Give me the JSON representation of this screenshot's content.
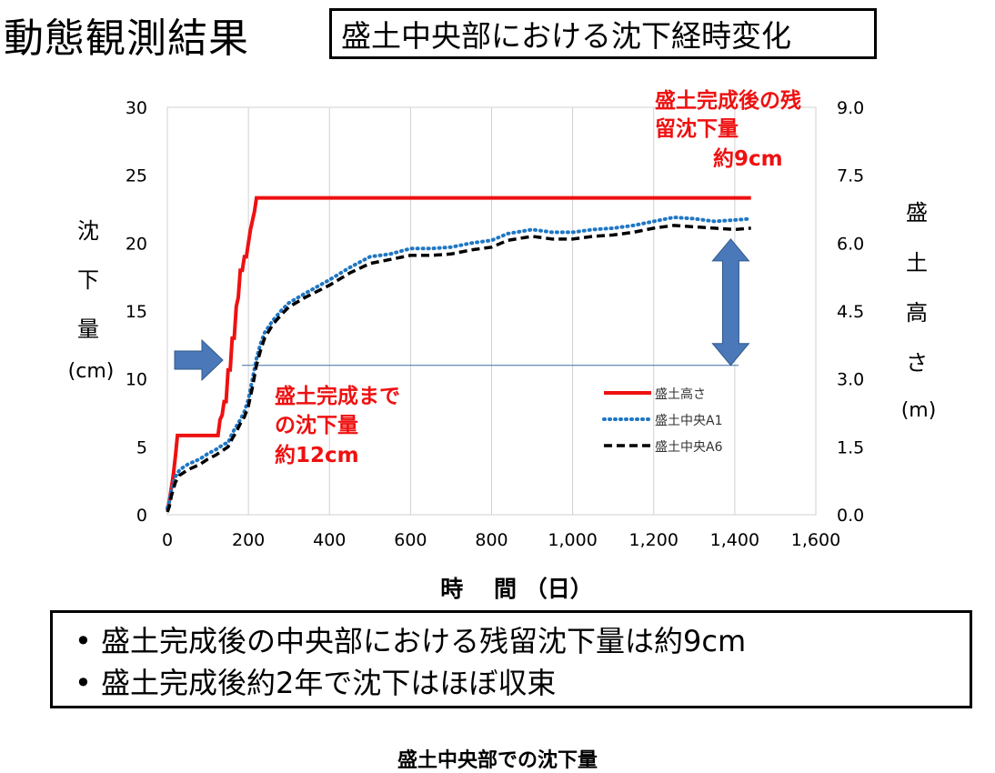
{
  "header": {
    "title": "動態観測結果",
    "subtitle": "盛土中央部における沈下経時変化"
  },
  "chart_data": {
    "type": "line",
    "xlabel": "時　 間 （日）",
    "ylabel_left_chars": [
      "沈",
      "下",
      "量",
      "(cm)"
    ],
    "ylabel_right_chars": [
      "盛",
      "土",
      "高",
      "さ",
      "(m)"
    ],
    "xlim": [
      0,
      1600
    ],
    "ylim_left": [
      0,
      30
    ],
    "ylim_right": [
      0.0,
      9.0
    ],
    "x_ticks": [
      "0",
      "200",
      "400",
      "600",
      "800",
      "1,000",
      "1,200",
      "1,400",
      "1,600"
    ],
    "y_ticks_left": [
      "0",
      "5",
      "10",
      "15",
      "20",
      "25",
      "30"
    ],
    "y_ticks_right": [
      "0.0",
      "1.5",
      "3.0",
      "4.5",
      "6.0",
      "7.5",
      "9.0"
    ],
    "grid": "vertical",
    "legend_position": "right-inside",
    "colors": {
      "height": "#ee1111",
      "a1": "#1f77c4",
      "a6": "#000000",
      "arrow": "#4a78b8"
    },
    "series": [
      {
        "name": "盛土高さ",
        "axis": "right",
        "style": "solid",
        "x": [
          0,
          5,
          10,
          15,
          20,
          25,
          125,
          130,
          135,
          140,
          145,
          150,
          155,
          160,
          165,
          170,
          175,
          180,
          185,
          190,
          195,
          200,
          205,
          210,
          215,
          220,
          225,
          1400,
          1440
        ],
        "y": [
          0.1,
          0.3,
          0.6,
          0.9,
          1.3,
          1.75,
          1.75,
          2.1,
          2.2,
          2.5,
          2.5,
          3.2,
          3.2,
          3.9,
          3.9,
          4.6,
          4.8,
          5.4,
          5.4,
          5.7,
          5.7,
          6.0,
          6.3,
          6.5,
          6.7,
          7.0,
          7.0,
          7.0,
          7.0
        ]
      },
      {
        "name": "盛土中央A1",
        "axis": "left",
        "style": "dotted",
        "x": [
          0,
          5,
          10,
          20,
          30,
          50,
          80,
          100,
          120,
          140,
          150,
          160,
          170,
          180,
          190,
          200,
          210,
          220,
          230,
          240,
          260,
          280,
          300,
          340,
          400,
          450,
          500,
          550,
          600,
          650,
          700,
          750,
          800,
          840,
          900,
          950,
          1000,
          1050,
          1100,
          1150,
          1200,
          1250,
          1300,
          1350,
          1400,
          1440
        ],
        "y": [
          0.5,
          1.0,
          1.8,
          2.8,
          3.3,
          3.7,
          4.1,
          4.5,
          4.8,
          5.2,
          5.3,
          6.0,
          6.5,
          7.0,
          7.6,
          8.5,
          10.0,
          11.5,
          12.6,
          13.4,
          14.3,
          15.0,
          15.6,
          16.3,
          17.3,
          18.2,
          19.0,
          19.2,
          19.6,
          19.6,
          19.7,
          20.0,
          20.2,
          20.7,
          21.0,
          20.8,
          20.8,
          21.0,
          21.1,
          21.3,
          21.6,
          21.9,
          21.8,
          21.6,
          21.7,
          21.8
        ]
      },
      {
        "name": "盛土中央A6",
        "axis": "left",
        "style": "dashed",
        "x": [
          0,
          5,
          10,
          20,
          30,
          50,
          80,
          100,
          120,
          140,
          150,
          160,
          170,
          180,
          190,
          200,
          210,
          220,
          230,
          240,
          260,
          280,
          300,
          340,
          400,
          450,
          500,
          550,
          600,
          650,
          700,
          750,
          800,
          840,
          900,
          950,
          1000,
          1050,
          1100,
          1150,
          1200,
          1250,
          1300,
          1350,
          1400,
          1440
        ],
        "y": [
          0.2,
          0.6,
          1.4,
          2.4,
          2.9,
          3.3,
          3.7,
          4.1,
          4.4,
          4.8,
          5.0,
          5.6,
          6.1,
          6.7,
          7.2,
          8.0,
          9.4,
          11.0,
          12.1,
          13.0,
          14.0,
          14.7,
          15.3,
          16.0,
          16.9,
          17.8,
          18.5,
          18.8,
          19.1,
          19.1,
          19.2,
          19.5,
          19.7,
          20.2,
          20.5,
          20.3,
          20.3,
          20.5,
          20.6,
          20.8,
          21.1,
          21.3,
          21.2,
          21.1,
          21.0,
          21.1
        ]
      }
    ],
    "annotations": [
      {
        "text_lines": [
          "盛土完成後の残",
          "留沈下量",
          "約9cm"
        ],
        "color": "#ee1111"
      },
      {
        "text_lines": [
          "盛土完成まで",
          "の沈下量",
          "約12cm"
        ],
        "color": "#ee1111"
      }
    ],
    "reference_line_y": 11.0,
    "double_arrow_y": [
      11.0,
      20.3
    ],
    "double_arrow_x": 1390
  },
  "summary": {
    "bullets": [
      "盛土完成後の中央部における残留沈下量は約9cm",
      "盛土完成後約2年で沈下はほぼ収束"
    ]
  },
  "caption": "盛土中央部での沈下量"
}
